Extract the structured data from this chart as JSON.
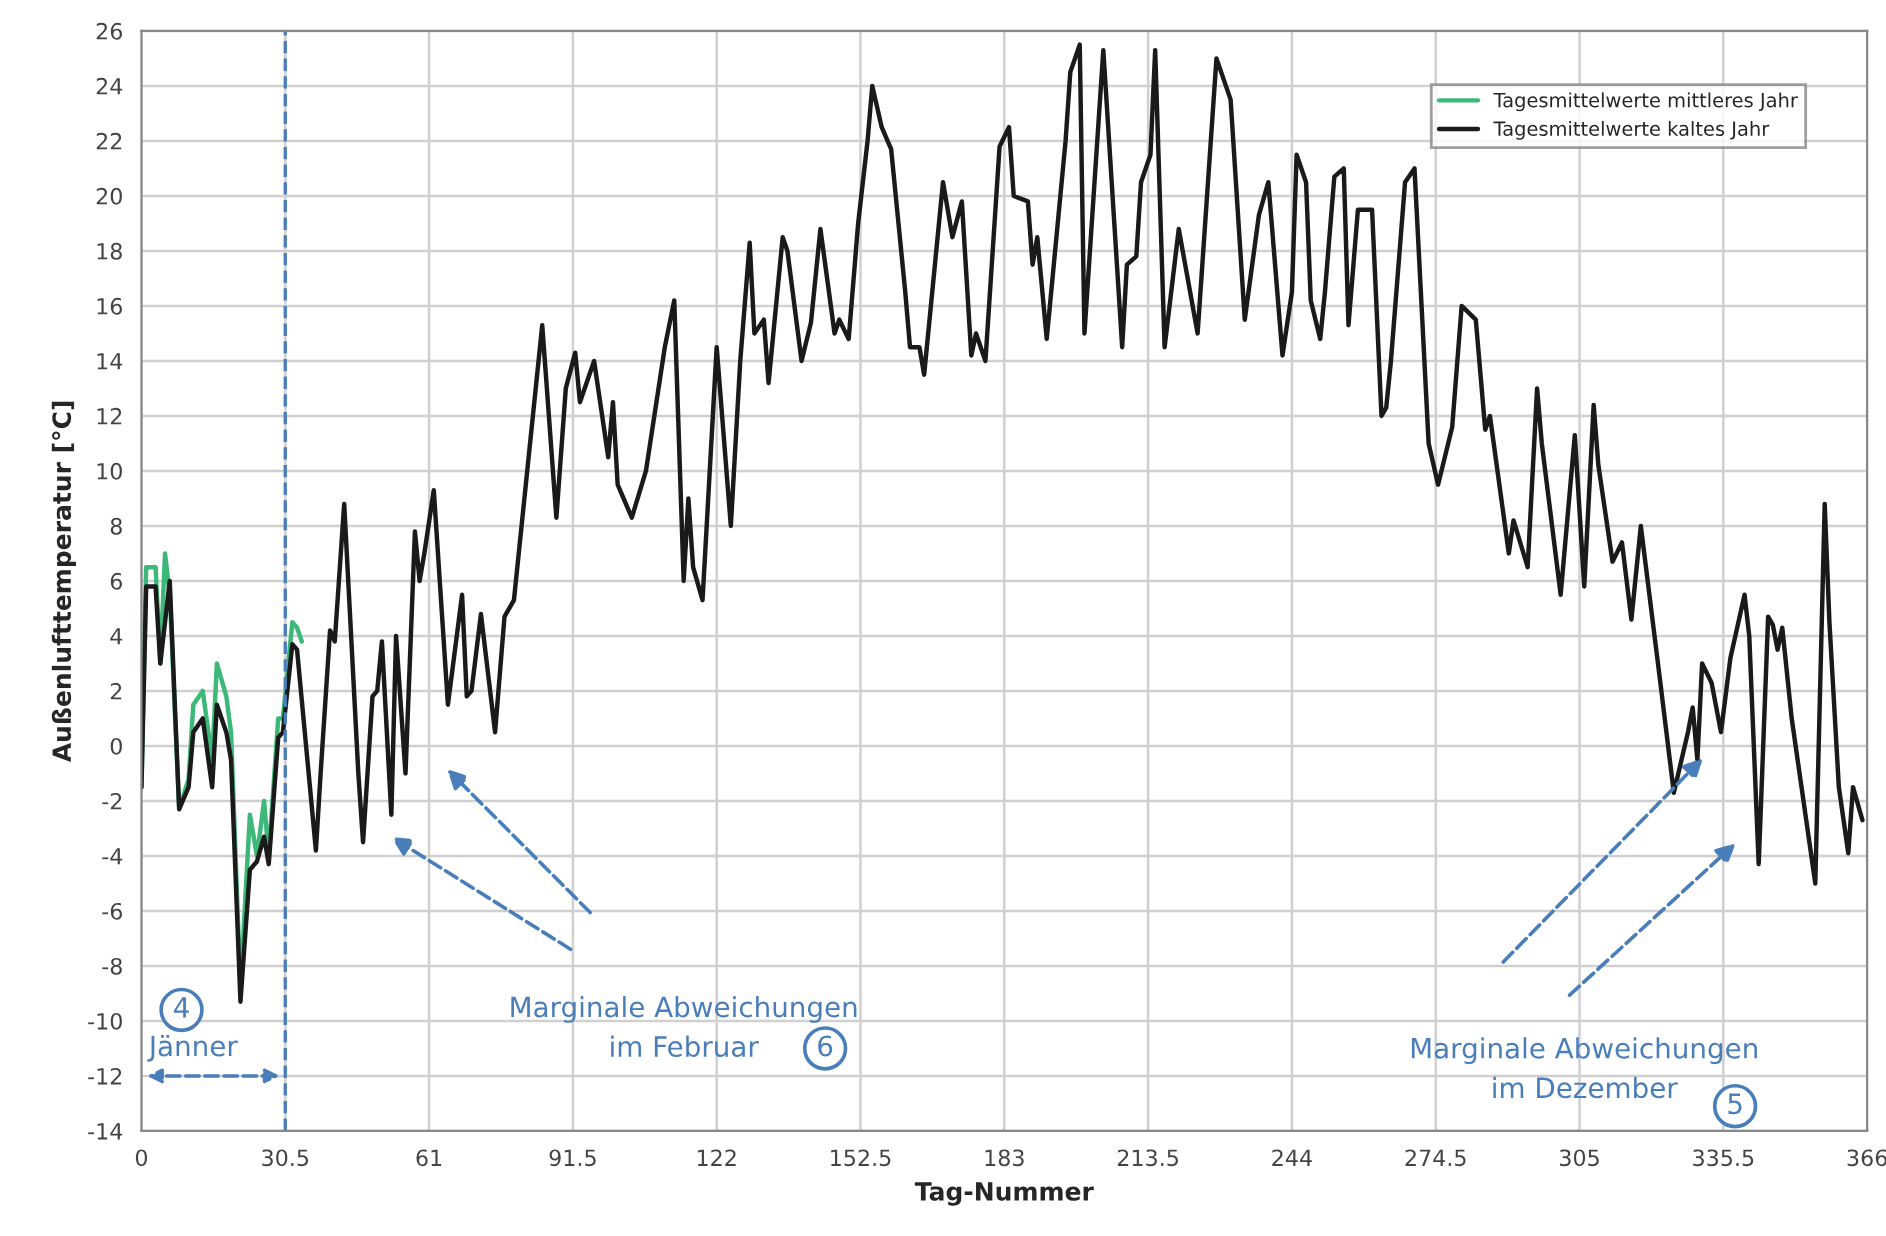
{
  "chart_data": {
    "type": "line",
    "xlabel": "Tag-Nummer",
    "ylabel": "Außenlufttemperatur [°C]",
    "xlim": [
      0,
      366
    ],
    "xticks": [
      0,
      30.5,
      61,
      91.5,
      122,
      152.5,
      183,
      213.5,
      244,
      274.5,
      305,
      335.5,
      366
    ],
    "ylim": [
      -14,
      26
    ],
    "yticks": [
      -14,
      -12,
      -10,
      -8,
      -6,
      -4,
      -2,
      0,
      2,
      4,
      6,
      8,
      10,
      12,
      14,
      16,
      18,
      20,
      22,
      24,
      26
    ],
    "grid": true,
    "legend": "top right",
    "marker": "none",
    "line_style": "solid",
    "series": [
      {
        "name": "Tagesmittelwerte mittleres Jahr",
        "color": "#3cb878",
        "x": [
          0,
          1,
          3,
          4,
          5,
          6,
          8,
          10,
          11,
          13,
          15,
          16,
          18,
          19,
          21,
          23,
          24.5,
          26,
          27,
          29,
          30,
          32,
          33,
          34
        ],
        "values": [
          -1.5,
          6.5,
          6.5,
          3,
          7,
          5.5,
          -2.3,
          -1.2,
          1.5,
          2,
          -0.5,
          3,
          1.8,
          0.5,
          -8.8,
          -2.5,
          -4,
          -2,
          -4,
          1,
          1,
          4.5,
          4.3,
          3.8
        ]
      },
      {
        "name": "Tagesmittelwerte kaltes Jahr",
        "color": "#1a1a1a",
        "x": [
          0,
          1,
          3,
          4,
          6,
          8,
          10,
          11,
          13,
          15,
          16,
          18,
          19,
          21,
          23,
          24.5,
          26,
          27,
          29,
          30,
          32,
          33,
          37,
          38,
          40,
          41,
          43,
          46,
          47,
          49,
          50,
          51,
          53,
          54,
          56,
          58,
          59,
          60,
          62,
          65,
          68,
          69,
          70,
          72,
          75,
          77,
          79,
          85,
          88,
          90,
          92,
          93,
          96,
          99,
          100,
          101,
          104,
          107,
          111,
          113,
          115,
          116,
          117,
          119,
          122,
          125,
          127,
          129,
          130,
          132,
          133,
          136,
          137,
          140,
          142,
          144,
          147,
          148,
          150,
          152,
          154,
          155,
          157,
          159,
          162,
          163,
          165,
          166,
          170,
          172,
          174,
          176,
          177,
          179,
          182,
          184,
          185,
          188,
          189,
          190,
          192,
          196,
          197,
          199,
          200,
          204,
          208,
          209,
          211,
          212,
          214,
          215,
          217,
          220,
          224,
          228,
          231,
          234,
          237,
          239,
          242,
          244,
          245,
          247,
          248,
          250,
          251,
          253,
          255,
          256,
          258,
          261,
          263,
          264,
          265,
          268,
          270,
          273,
          275,
          278,
          280,
          283,
          285,
          286,
          290,
          291,
          294,
          296,
          297,
          301,
          304,
          306,
          308,
          309,
          312,
          314,
          316,
          318,
          322,
          325,
          328,
          329,
          330,
          331,
          333,
          335,
          337,
          340,
          341,
          343,
          345,
          346,
          347,
          348,
          350,
          355,
          357,
          358,
          360,
          362,
          363,
          365
        ],
        "values": [
          -1.5,
          5.8,
          5.8,
          3,
          6,
          -2.3,
          -1.5,
          0.5,
          1,
          -1.5,
          1.5,
          0.5,
          -0.5,
          -9.3,
          -4.5,
          -4.2,
          -3.3,
          -4.3,
          0.3,
          0.5,
          3.7,
          3.5,
          -3.8,
          -1,
          4.2,
          3.8,
          8.8,
          -1,
          -3.5,
          1.8,
          2,
          3.8,
          -2.5,
          4,
          -1,
          7.8,
          6,
          7,
          9.3,
          1.5,
          5.5,
          1.8,
          2,
          4.8,
          0.5,
          4.7,
          5.3,
          15.3,
          8.3,
          13,
          14.3,
          12.5,
          14,
          10.5,
          12.5,
          9.5,
          8.3,
          10,
          14.5,
          16.2,
          6,
          9,
          6.5,
          5.3,
          14.5,
          8,
          14,
          18.3,
          15,
          15.5,
          13.2,
          18.5,
          18,
          14,
          15.4,
          18.8,
          15,
          15.5,
          14.8,
          19,
          22,
          24,
          22.5,
          21.7,
          16.5,
          14.5,
          14.5,
          13.5,
          20.5,
          18.5,
          19.8,
          14.2,
          15,
          14,
          21.8,
          22.5,
          20,
          19.8,
          17.5,
          18.5,
          14.8,
          22,
          24.5,
          25.5,
          15,
          25.3,
          14.5,
          17.5,
          17.8,
          20.5,
          21.5,
          25.3,
          14.5,
          18.8,
          15,
          25,
          23.5,
          15.5,
          19.3,
          20.5,
          14.2,
          16.5,
          21.5,
          20.5,
          16.2,
          14.8,
          16.5,
          20.7,
          21,
          15.3,
          19.5,
          19.5,
          12,
          12.3,
          14,
          20.5,
          21,
          11,
          9.5,
          11.6,
          16,
          15.5,
          11.5,
          12,
          7,
          8.2,
          6.5,
          13,
          11,
          5.5,
          11.3,
          5.8,
          12.4,
          10.2,
          6.7,
          7.4,
          4.6,
          8,
          2.5,
          -1.7,
          0.5,
          1.4,
          -0.5,
          3,
          2.3,
          0.5,
          3.2,
          5.5,
          4,
          -4.3,
          4.7,
          4.4,
          3.5,
          4.3,
          1,
          -5,
          8.8,
          4.5,
          -1.5,
          -3.9,
          -1.5,
          -2.7
        ]
      }
    ],
    "ref_lines": [
      {
        "axis": "x",
        "value": 30.5,
        "color": "#4a7ebb",
        "line_style": "dashed"
      }
    ],
    "annotations": [
      "Jänner",
      "4",
      "Marginale Abweichungen\nim Februar",
      "6",
      "Marginale Abweichungen\nim Dezember",
      "5"
    ]
  }
}
